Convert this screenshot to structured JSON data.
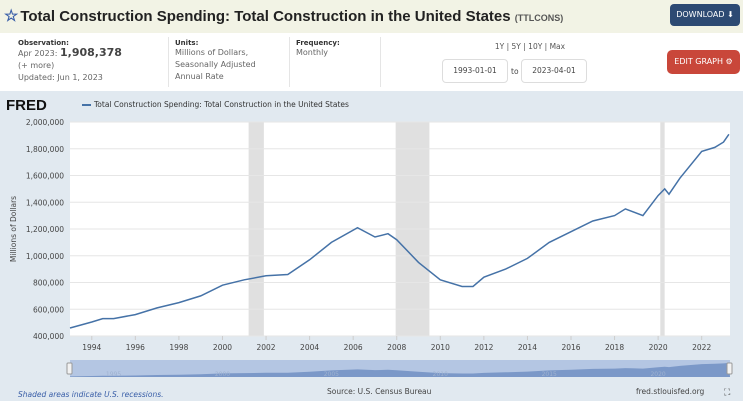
{
  "header": {
    "title": "Total Construction Spending: Total Construction in the United States",
    "code": "(TTLCONS)",
    "download_label": "DOWNLOAD ⬇"
  },
  "info": {
    "observation_label": "Observation:",
    "observation_date": "Apr 2023:",
    "observation_value": "1,908,378",
    "more": "(+ more)",
    "updated": "Updated: Jun 1, 2023",
    "units_label": "Units:",
    "units_lines": [
      "Millions of Dollars,",
      "Seasonally Adjusted",
      "Annual Rate"
    ],
    "frequency_label": "Frequency:",
    "frequency": "Monthly",
    "range_links": "1Y | 5Y | 10Y | Max",
    "start": "1993-01-01",
    "to": "to",
    "end": "2023-04-01",
    "edit_label": "EDIT GRAPH ⚙"
  },
  "footer": {
    "recession_note": "Shaded areas indicate U.S. recessions.",
    "source": "Source: U.S. Census Bureau",
    "site": "fred.stlouisfed.org"
  },
  "fred_logo": "FRED",
  "colors": {
    "line": "#4572a7",
    "recession": "#e0e0e0",
    "download": "#2d4a73",
    "edit": "#c9473a"
  },
  "chart_data": {
    "type": "line",
    "ylabel": "Millions of Dollars",
    "ylim": [
      400000,
      2000000
    ],
    "yticks": [
      "400,000",
      "600,000",
      "800,000",
      "1,000,000",
      "1,200,000",
      "1,400,000",
      "1,600,000",
      "1,800,000",
      "2,000,000"
    ],
    "xticks": [
      "1994",
      "1996",
      "1998",
      "2000",
      "2002",
      "2004",
      "2006",
      "2008",
      "2010",
      "2012",
      "2014",
      "2016",
      "2018",
      "2020",
      "2022"
    ],
    "navigator_ticks": [
      "1995",
      "2000",
      "2005",
      "2010",
      "2015",
      "2020"
    ],
    "grid": true,
    "recessions": [
      [
        2001.2,
        2001.9
      ],
      [
        2007.95,
        2009.5
      ],
      [
        2020.1,
        2020.3
      ]
    ],
    "series": [
      {
        "name": "Total Construction Spending: Total Construction in the United States",
        "x": [
          1993.0,
          1994.0,
          1994.5,
          1995.0,
          1996.0,
          1997.0,
          1998.0,
          1999.0,
          2000.0,
          2001.0,
          2002.0,
          2003.0,
          2004.0,
          2005.0,
          2006.2,
          2007.0,
          2007.6,
          2008.0,
          2009.0,
          2010.0,
          2011.0,
          2011.5,
          2012.0,
          2013.0,
          2014.0,
          2015.0,
          2016.0,
          2017.0,
          2018.0,
          2018.5,
          2019.3,
          2020.0,
          2020.3,
          2020.5,
          2021.0,
          2022.0,
          2022.6,
          2023.0,
          2023.25
        ],
        "y": [
          460000,
          505000,
          530000,
          530000,
          560000,
          610000,
          650000,
          700000,
          780000,
          820000,
          850000,
          860000,
          970000,
          1100000,
          1210000,
          1140000,
          1165000,
          1120000,
          950000,
          820000,
          770000,
          770000,
          840000,
          900000,
          980000,
          1100000,
          1180000,
          1260000,
          1300000,
          1350000,
          1300000,
          1450000,
          1500000,
          1460000,
          1580000,
          1780000,
          1810000,
          1850000,
          1908378
        ]
      }
    ]
  }
}
